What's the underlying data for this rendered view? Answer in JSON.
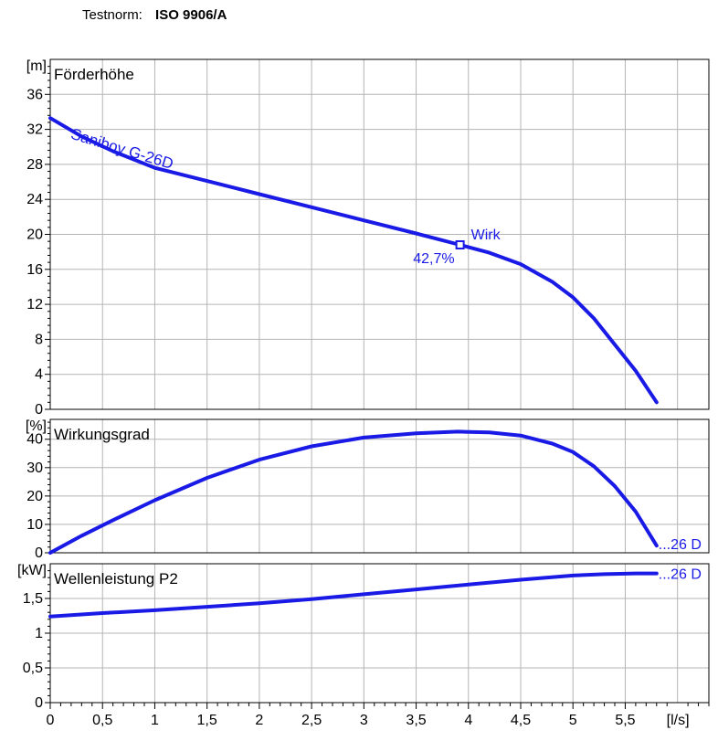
{
  "header": {
    "label": "Testnorm:",
    "value": "ISO 9906/A"
  },
  "x_axis": {
    "tick_labels": [
      "0",
      "0,5",
      "1",
      "1,5",
      "2",
      "2,5",
      "3",
      "3,5",
      "4",
      "4,5",
      "5",
      "5,5"
    ],
    "unit": "[l/s]",
    "range": [
      0,
      6.3
    ]
  },
  "colors": {
    "curve": "#1a1ae6",
    "grid": "#b4b4b4",
    "frame": "#000000"
  },
  "chart_data": [
    {
      "type": "line",
      "title": "Förderhöhe",
      "yunit": "[m]",
      "ylim": [
        0,
        40
      ],
      "yticks": [
        "0",
        "4",
        "8",
        "12",
        "16",
        "20",
        "24",
        "28",
        "32",
        "36"
      ],
      "series": [
        {
          "name": "Saniboy G-26D",
          "x": [
            0,
            0.3,
            0.6,
            1.0,
            1.5,
            2.0,
            2.5,
            3.0,
            3.5,
            3.92,
            4.2,
            4.5,
            4.8,
            5.0,
            5.2,
            5.4,
            5.6,
            5.8
          ],
          "y": [
            33.3,
            31.2,
            29.5,
            27.6,
            26.1,
            24.6,
            23.1,
            21.6,
            20.1,
            18.8,
            17.9,
            16.6,
            14.6,
            12.8,
            10.4,
            7.4,
            4.4,
            0.8
          ]
        }
      ],
      "annotations": {
        "curve_label": "Saniboy G-26D",
        "point_label": "Wirk",
        "point_value": "42,7%",
        "point_x": 3.92,
        "point_y": 18.8
      }
    },
    {
      "type": "line",
      "title": "Wirkungsgrad",
      "yunit": "[%]",
      "ylim": [
        0,
        47
      ],
      "yticks": [
        "0",
        "10",
        "20",
        "30",
        "40"
      ],
      "series": [
        {
          "name": "...26 D",
          "x": [
            0,
            0.3,
            0.6,
            1.0,
            1.5,
            2.0,
            2.5,
            3.0,
            3.5,
            3.9,
            4.2,
            4.5,
            4.8,
            5.0,
            5.2,
            5.4,
            5.6,
            5.8
          ],
          "y": [
            0,
            6,
            11.5,
            18.5,
            26.4,
            32.8,
            37.5,
            40.6,
            42.1,
            42.7,
            42.4,
            41.3,
            38.5,
            35.5,
            30.5,
            23.5,
            14.5,
            2.5
          ]
        }
      ],
      "end_label": "...26 D"
    },
    {
      "type": "line",
      "title": "Wellenleistung P2",
      "yunit": "[kW]",
      "ylim": [
        0,
        2.0
      ],
      "yticks": [
        "0",
        "0,5",
        "1",
        "1,5"
      ],
      "series": [
        {
          "name": "...26 D",
          "x": [
            0,
            0.5,
            1.0,
            1.5,
            2.0,
            2.5,
            3.0,
            3.5,
            4.0,
            4.5,
            5.0,
            5.3,
            5.6,
            5.8
          ],
          "y": [
            1.24,
            1.29,
            1.33,
            1.38,
            1.43,
            1.49,
            1.56,
            1.63,
            1.7,
            1.77,
            1.83,
            1.85,
            1.86,
            1.86
          ]
        }
      ],
      "end_label": "...26 D"
    }
  ]
}
